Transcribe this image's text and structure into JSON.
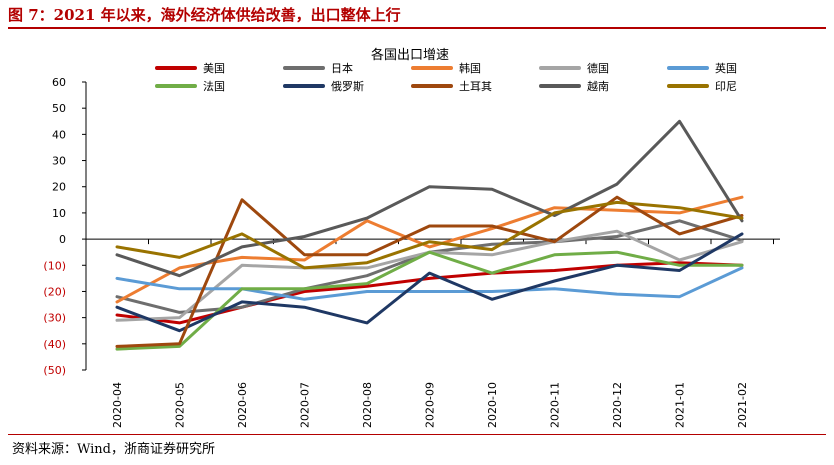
{
  "figure_title": "图 7：2021 年以来，海外经济体供给改善，出口整体上行",
  "source": "资料来源：Wind，浙商证券研究所",
  "chart_data": {
    "type": "line",
    "title": "各国出口增速",
    "xlabel": "",
    "ylabel": "",
    "categories": [
      "2020-04",
      "2020-05",
      "2020-06",
      "2020-07",
      "2020-08",
      "2020-09",
      "2020-10",
      "2020-11",
      "2020-12",
      "2021-01",
      "2021-02"
    ],
    "ylim": [
      -50,
      60
    ],
    "yticks": [
      60,
      50,
      40,
      30,
      20,
      10,
      0,
      -10,
      -20,
      -30,
      -40,
      -50
    ],
    "ytick_labels": [
      "60",
      "50",
      "40",
      "30",
      "20",
      "10",
      "0",
      "(10)",
      "(20)",
      "(30)",
      "(40)",
      "(50)"
    ],
    "grid": false,
    "legend_position": "top",
    "series": [
      {
        "name": "美国",
        "color": "#c00000",
        "values": [
          -29,
          -32,
          -26,
          -20,
          -18,
          -15,
          -13,
          -12,
          -10,
          -9,
          -10
        ]
      },
      {
        "name": "日本",
        "color": "#6e6e6e",
        "values": [
          -22,
          -28,
          -26,
          -19,
          -14,
          -5,
          -2,
          -1,
          1,
          7,
          -0.5
        ]
      },
      {
        "name": "韩国",
        "color": "#ed7d31",
        "values": [
          -24,
          -11,
          -7,
          -8,
          7,
          -3,
          4,
          12,
          11,
          10,
          16
        ]
      },
      {
        "name": "德国",
        "color": "#a5a5a5",
        "values": [
          -31,
          -30,
          -10,
          -11,
          -11,
          -5,
          -6,
          -1,
          3,
          -8,
          -1
        ]
      },
      {
        "name": "英国",
        "color": "#5b9bd5",
        "values": [
          -15,
          -19,
          -19,
          -23,
          -20,
          -20,
          -20,
          -19,
          -21,
          -22,
          -11
        ]
      },
      {
        "name": "法国",
        "color": "#70ad47",
        "values": [
          -42,
          -41,
          -19,
          -19,
          -17,
          -5,
          -13,
          -6,
          -5,
          -10,
          -10
        ]
      },
      {
        "name": "俄罗斯",
        "color": "#1f3864",
        "values": [
          -26,
          -35,
          -24,
          -26,
          -32,
          -13,
          -23,
          -16,
          -10,
          -12,
          2
        ]
      },
      {
        "name": "土耳其",
        "color": "#9e480e",
        "values": [
          -41,
          -40,
          15,
          -6,
          -6,
          5,
          5,
          -1,
          16,
          2,
          9
        ]
      },
      {
        "name": "越南",
        "color": "#595959",
        "values": [
          -6,
          -14,
          -3,
          1,
          8,
          20,
          19,
          9,
          21,
          45,
          7
        ]
      },
      {
        "name": "印尼",
        "color": "#997300",
        "values": [
          -3,
          -7,
          2,
          -11,
          -9,
          -1,
          -4,
          10,
          14,
          12,
          8
        ]
      }
    ]
  }
}
